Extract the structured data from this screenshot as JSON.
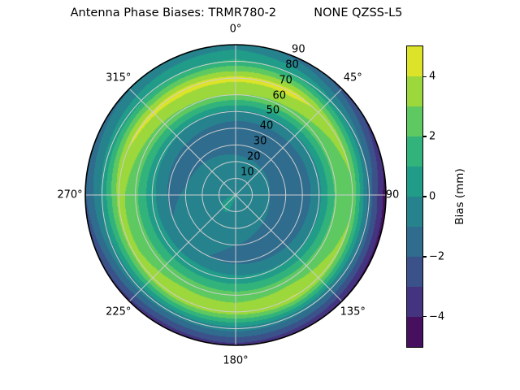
{
  "chart_data": {
    "type": "polar_filled_contour",
    "title": "Antenna Phase Biases: TRMR780-2          NONE QZSS-L5",
    "colormap": "viridis",
    "angular_direction": "clockwise, 0 at top",
    "azimuth_tick_labels": [
      "0°",
      "45°",
      "90",
      "135°",
      "180°",
      "225°",
      "270°",
      "315°"
    ],
    "azimuth_tick_degrees": [
      0,
      45,
      90,
      135,
      180,
      225,
      270,
      315
    ],
    "radial_tick_labels": [
      "10",
      "20",
      "30",
      "40",
      "50",
      "60",
      "70",
      "80",
      "90"
    ],
    "radial_tick_values": [
      10,
      20,
      30,
      40,
      50,
      60,
      70,
      80,
      90
    ],
    "rlabel_angle_deg": 22.5,
    "radial_max": 90,
    "grid_color": "#cdcdcd",
    "azimuths_deg": [
      0,
      30,
      60,
      90,
      120,
      150,
      180,
      210,
      240,
      270,
      300,
      330
    ],
    "radii_deg": [
      0,
      10,
      20,
      30,
      40,
      50,
      60,
      70,
      80,
      90
    ],
    "bias_mm": [
      [
        -0.2,
        -0.5,
        -0.8,
        -1.3,
        -1.6,
        -0.2,
        3.0,
        4.3,
        1.2,
        -0.5
      ],
      [
        -0.3,
        -0.55,
        -0.85,
        -1.4,
        -1.65,
        -0.2,
        2.8,
        4.4,
        0.8,
        -1.6
      ],
      [
        -0.3,
        -0.6,
        -0.9,
        -1.5,
        -1.7,
        -0.3,
        2.4,
        3.4,
        -0.4,
        -3.2
      ],
      [
        -0.3,
        -0.6,
        -1.0,
        -1.5,
        -1.7,
        -0.3,
        2.2,
        2.8,
        -1.5,
        -4.6
      ],
      [
        -0.2,
        -0.5,
        -0.9,
        -1.4,
        -1.6,
        -0.1,
        2.3,
        3.3,
        -1.1,
        -4.3
      ],
      [
        -0.1,
        -0.4,
        -0.8,
        -1.2,
        -1.4,
        0.1,
        2.6,
        4.1,
        -0.7,
        -3.8
      ],
      [
        0.0,
        -0.3,
        -0.6,
        -1.0,
        -1.2,
        0.3,
        2.5,
        3.6,
        -0.5,
        -3.4
      ],
      [
        0.1,
        0.1,
        -0.4,
        -0.85,
        -0.95,
        0.4,
        2.6,
        3.8,
        -0.6,
        -3.7
      ],
      [
        0.1,
        0.0,
        -0.4,
        -0.85,
        -0.95,
        0.4,
        2.4,
        3.3,
        -0.4,
        -3.1
      ],
      [
        0.0,
        -0.2,
        -0.5,
        -0.95,
        -1.1,
        0.3,
        2.3,
        3.4,
        0.1,
        -2.1
      ],
      [
        -0.1,
        -0.3,
        -0.6,
        -1.1,
        -1.3,
        0.2,
        2.6,
        4.2,
        0.5,
        -1.4
      ],
      [
        -0.2,
        -0.4,
        -0.7,
        -1.2,
        -1.45,
        0.0,
        2.9,
        4.4,
        0.9,
        -0.8
      ]
    ],
    "colorbar": {
      "label": "Bias (mm)",
      "vmin": -5,
      "vmax": 5,
      "level_step": 1,
      "tick_values": [
        4,
        2,
        0,
        -2,
        -4
      ],
      "tick_labels": [
        "4",
        "2",
        "0",
        "−2",
        "−4"
      ],
      "colors_low_to_high": [
        "#46105f",
        "#44337e",
        "#3b518a",
        "#2f6c8e",
        "#26838e",
        "#209c89",
        "#32b37b",
        "#5fc961",
        "#9cd83b",
        "#dce328"
      ]
    }
  }
}
